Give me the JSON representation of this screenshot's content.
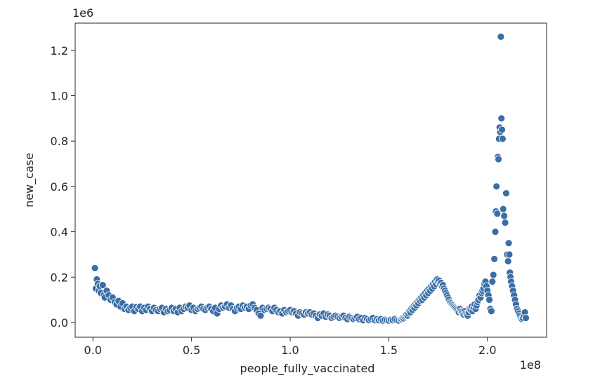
{
  "chart_data": {
    "type": "scatter",
    "title": "",
    "xlabel": "people_fully_vaccinated",
    "ylabel": "new_case",
    "x_offset_label": "1e8",
    "y_offset_label": "1e6",
    "xlim": [
      -0.09,
      2.3
    ],
    "ylim": [
      -0.065,
      1.32
    ],
    "xticks": [
      0.0,
      0.5,
      1.0,
      1.5,
      2.0
    ],
    "xtick_labels": [
      "0.0",
      "0.5",
      "1.0",
      "1.5",
      "2.0"
    ],
    "yticks": [
      0.0,
      0.2,
      0.4,
      0.6,
      0.8,
      1.0,
      1.2
    ],
    "ytick_labels": [
      "0.0",
      "0.2",
      "0.4",
      "0.6",
      "0.8",
      "1.0",
      "1.2"
    ],
    "x_units": "1e8",
    "y_units": "1e6",
    "grid": false,
    "legend": "none",
    "marker_color": "#3b6ea5",
    "marker_edge_color": "#ffffff",
    "points": [
      [
        0.01,
        0.24
      ],
      [
        0.015,
        0.15
      ],
      [
        0.02,
        0.19
      ],
      [
        0.025,
        0.17
      ],
      [
        0.03,
        0.14
      ],
      [
        0.035,
        0.16
      ],
      [
        0.04,
        0.13
      ],
      [
        0.05,
        0.165
      ],
      [
        0.055,
        0.12
      ],
      [
        0.06,
        0.11
      ],
      [
        0.07,
        0.14
      ],
      [
        0.08,
        0.12
      ],
      [
        0.09,
        0.1
      ],
      [
        0.1,
        0.11
      ],
      [
        0.11,
        0.09
      ],
      [
        0.12,
        0.08
      ],
      [
        0.13,
        0.095
      ],
      [
        0.14,
        0.07
      ],
      [
        0.15,
        0.085
      ],
      [
        0.16,
        0.06
      ],
      [
        0.17,
        0.07
      ],
      [
        0.18,
        0.055
      ],
      [
        0.19,
        0.065
      ],
      [
        0.2,
        0.07
      ],
      [
        0.21,
        0.05
      ],
      [
        0.22,
        0.068
      ],
      [
        0.23,
        0.06
      ],
      [
        0.24,
        0.07
      ],
      [
        0.25,
        0.05
      ],
      [
        0.26,
        0.065
      ],
      [
        0.27,
        0.055
      ],
      [
        0.28,
        0.07
      ],
      [
        0.29,
        0.06
      ],
      [
        0.3,
        0.05
      ],
      [
        0.31,
        0.065
      ],
      [
        0.32,
        0.055
      ],
      [
        0.33,
        0.05
      ],
      [
        0.34,
        0.06
      ],
      [
        0.35,
        0.065
      ],
      [
        0.36,
        0.045
      ],
      [
        0.37,
        0.06
      ],
      [
        0.38,
        0.05
      ],
      [
        0.39,
        0.055
      ],
      [
        0.4,
        0.065
      ],
      [
        0.41,
        0.05
      ],
      [
        0.42,
        0.06
      ],
      [
        0.43,
        0.045
      ],
      [
        0.44,
        0.065
      ],
      [
        0.45,
        0.05
      ],
      [
        0.46,
        0.06
      ],
      [
        0.47,
        0.07
      ],
      [
        0.48,
        0.065
      ],
      [
        0.49,
        0.075
      ],
      [
        0.5,
        0.055
      ],
      [
        0.51,
        0.065
      ],
      [
        0.52,
        0.05
      ],
      [
        0.53,
        0.06
      ],
      [
        0.54,
        0.065
      ],
      [
        0.55,
        0.07
      ],
      [
        0.56,
        0.06
      ],
      [
        0.57,
        0.055
      ],
      [
        0.58,
        0.065
      ],
      [
        0.59,
        0.07
      ],
      [
        0.6,
        0.06
      ],
      [
        0.61,
        0.05
      ],
      [
        0.62,
        0.065
      ],
      [
        0.63,
        0.04
      ],
      [
        0.64,
        0.06
      ],
      [
        0.65,
        0.075
      ],
      [
        0.66,
        0.065
      ],
      [
        0.67,
        0.07
      ],
      [
        0.68,
        0.08
      ],
      [
        0.69,
        0.065
      ],
      [
        0.7,
        0.075
      ],
      [
        0.71,
        0.06
      ],
      [
        0.72,
        0.05
      ],
      [
        0.73,
        0.065
      ],
      [
        0.74,
        0.07
      ],
      [
        0.75,
        0.06
      ],
      [
        0.76,
        0.075
      ],
      [
        0.77,
        0.065
      ],
      [
        0.78,
        0.07
      ],
      [
        0.79,
        0.06
      ],
      [
        0.8,
        0.075
      ],
      [
        0.81,
        0.08
      ],
      [
        0.82,
        0.065
      ],
      [
        0.83,
        0.055
      ],
      [
        0.84,
        0.04
      ],
      [
        0.85,
        0.03
      ],
      [
        0.86,
        0.065
      ],
      [
        0.87,
        0.055
      ],
      [
        0.88,
        0.06
      ],
      [
        0.89,
        0.065
      ],
      [
        0.9,
        0.06
      ],
      [
        0.91,
        0.05
      ],
      [
        0.92,
        0.065
      ],
      [
        0.93,
        0.055
      ],
      [
        0.94,
        0.045
      ],
      [
        0.95,
        0.05
      ],
      [
        0.96,
        0.04
      ],
      [
        0.97,
        0.055
      ],
      [
        0.98,
        0.045
      ],
      [
        0.99,
        0.05
      ],
      [
        1.0,
        0.055
      ],
      [
        1.01,
        0.045
      ],
      [
        1.02,
        0.05
      ],
      [
        1.03,
        0.04
      ],
      [
        1.04,
        0.03
      ],
      [
        1.05,
        0.045
      ],
      [
        1.06,
        0.04
      ],
      [
        1.07,
        0.035
      ],
      [
        1.08,
        0.045
      ],
      [
        1.09,
        0.04
      ],
      [
        1.1,
        0.045
      ],
      [
        1.11,
        0.035
      ],
      [
        1.12,
        0.04
      ],
      [
        1.13,
        0.03
      ],
      [
        1.14,
        0.02
      ],
      [
        1.15,
        0.035
      ],
      [
        1.16,
        0.03
      ],
      [
        1.17,
        0.04
      ],
      [
        1.18,
        0.025
      ],
      [
        1.19,
        0.035
      ],
      [
        1.2,
        0.03
      ],
      [
        1.21,
        0.02
      ],
      [
        1.22,
        0.025
      ],
      [
        1.23,
        0.03
      ],
      [
        1.24,
        0.025
      ],
      [
        1.25,
        0.02
      ],
      [
        1.26,
        0.025
      ],
      [
        1.27,
        0.03
      ],
      [
        1.28,
        0.02
      ],
      [
        1.29,
        0.015
      ],
      [
        1.3,
        0.025
      ],
      [
        1.31,
        0.02
      ],
      [
        1.32,
        0.015
      ],
      [
        1.33,
        0.02
      ],
      [
        1.34,
        0.025
      ],
      [
        1.35,
        0.015
      ],
      [
        1.36,
        0.02
      ],
      [
        1.37,
        0.01
      ],
      [
        1.38,
        0.02
      ],
      [
        1.39,
        0.015
      ],
      [
        1.4,
        0.01
      ],
      [
        1.41,
        0.015
      ],
      [
        1.42,
        0.02
      ],
      [
        1.43,
        0.01
      ],
      [
        1.44,
        0.015
      ],
      [
        1.45,
        0.01
      ],
      [
        1.46,
        0.015
      ],
      [
        1.47,
        0.008
      ],
      [
        1.48,
        0.012
      ],
      [
        1.49,
        0.01
      ],
      [
        1.5,
        0.008
      ],
      [
        1.51,
        0.012
      ],
      [
        1.52,
        0.01
      ],
      [
        1.53,
        0.015
      ],
      [
        1.54,
        0.01
      ],
      [
        1.55,
        0.008
      ],
      [
        1.56,
        0.012
      ],
      [
        1.565,
        0.015
      ],
      [
        1.57,
        0.02
      ],
      [
        1.575,
        0.018
      ],
      [
        1.58,
        0.025
      ],
      [
        1.585,
        0.03
      ],
      [
        1.59,
        0.035
      ],
      [
        1.595,
        0.03
      ],
      [
        1.6,
        0.04
      ],
      [
        1.605,
        0.05
      ],
      [
        1.61,
        0.045
      ],
      [
        1.615,
        0.06
      ],
      [
        1.62,
        0.055
      ],
      [
        1.625,
        0.07
      ],
      [
        1.63,
        0.065
      ],
      [
        1.635,
        0.08
      ],
      [
        1.64,
        0.075
      ],
      [
        1.645,
        0.09
      ],
      [
        1.65,
        0.085
      ],
      [
        1.655,
        0.1
      ],
      [
        1.66,
        0.095
      ],
      [
        1.665,
        0.11
      ],
      [
        1.67,
        0.1
      ],
      [
        1.675,
        0.12
      ],
      [
        1.68,
        0.11
      ],
      [
        1.685,
        0.13
      ],
      [
        1.69,
        0.12
      ],
      [
        1.695,
        0.14
      ],
      [
        1.7,
        0.13
      ],
      [
        1.705,
        0.15
      ],
      [
        1.71,
        0.14
      ],
      [
        1.715,
        0.16
      ],
      [
        1.72,
        0.15
      ],
      [
        1.725,
        0.17
      ],
      [
        1.73,
        0.16
      ],
      [
        1.735,
        0.18
      ],
      [
        1.74,
        0.17
      ],
      [
        1.745,
        0.19
      ],
      [
        1.75,
        0.18
      ],
      [
        1.755,
        0.185
      ],
      [
        1.76,
        0.17
      ],
      [
        1.765,
        0.175
      ],
      [
        1.77,
        0.16
      ],
      [
        1.775,
        0.165
      ],
      [
        1.78,
        0.15
      ],
      [
        1.785,
        0.14
      ],
      [
        1.79,
        0.13
      ],
      [
        1.795,
        0.12
      ],
      [
        1.8,
        0.11
      ],
      [
        1.805,
        0.1
      ],
      [
        1.81,
        0.09
      ],
      [
        1.815,
        0.085
      ],
      [
        1.82,
        0.08
      ],
      [
        1.825,
        0.075
      ],
      [
        1.83,
        0.07
      ],
      [
        1.835,
        0.065
      ],
      [
        1.84,
        0.06
      ],
      [
        1.845,
        0.055
      ],
      [
        1.85,
        0.05
      ],
      [
        1.855,
        0.045
      ],
      [
        1.86,
        0.06
      ],
      [
        1.865,
        0.05
      ],
      [
        1.87,
        0.045
      ],
      [
        1.875,
        0.04
      ],
      [
        1.88,
        0.035
      ],
      [
        1.885,
        0.05
      ],
      [
        1.89,
        0.04
      ],
      [
        1.895,
        0.035
      ],
      [
        1.9,
        0.03
      ],
      [
        1.905,
        0.045
      ],
      [
        1.91,
        0.06
      ],
      [
        1.915,
        0.055
      ],
      [
        1.92,
        0.07
      ],
      [
        1.925,
        0.05
      ],
      [
        1.93,
        0.065
      ],
      [
        1.935,
        0.08
      ],
      [
        1.94,
        0.06
      ],
      [
        1.945,
        0.075
      ],
      [
        1.95,
        0.09
      ],
      [
        1.955,
        0.1
      ],
      [
        1.96,
        0.12
      ],
      [
        1.965,
        0.11
      ],
      [
        1.97,
        0.13
      ],
      [
        1.975,
        0.14
      ],
      [
        1.98,
        0.15
      ],
      [
        1.985,
        0.17
      ],
      [
        1.99,
        0.18
      ],
      [
        1.995,
        0.16
      ],
      [
        2.0,
        0.14
      ],
      [
        2.005,
        0.12
      ],
      [
        2.01,
        0.1
      ],
      [
        2.015,
        0.06
      ],
      [
        2.02,
        0.05
      ],
      [
        2.025,
        0.18
      ],
      [
        2.03,
        0.21
      ],
      [
        2.035,
        0.28
      ],
      [
        2.04,
        0.4
      ],
      [
        2.043,
        0.49
      ],
      [
        2.046,
        0.6
      ],
      [
        2.05,
        0.48
      ],
      [
        2.053,
        0.73
      ],
      [
        2.056,
        0.72
      ],
      [
        2.059,
        0.81
      ],
      [
        2.062,
        0.86
      ],
      [
        2.065,
        0.84
      ],
      [
        2.068,
        1.26
      ],
      [
        2.071,
        0.9
      ],
      [
        2.074,
        0.85
      ],
      [
        2.077,
        0.81
      ],
      [
        2.08,
        0.5
      ],
      [
        2.085,
        0.47
      ],
      [
        2.09,
        0.44
      ],
      [
        2.095,
        0.57
      ],
      [
        2.1,
        0.3
      ],
      [
        2.105,
        0.27
      ],
      [
        2.108,
        0.35
      ],
      [
        2.111,
        0.3
      ],
      [
        2.114,
        0.22
      ],
      [
        2.117,
        0.2
      ],
      [
        2.12,
        0.18
      ],
      [
        2.125,
        0.16
      ],
      [
        2.13,
        0.14
      ],
      [
        2.135,
        0.12
      ],
      [
        2.14,
        0.1
      ],
      [
        2.145,
        0.08
      ],
      [
        2.15,
        0.06
      ],
      [
        2.155,
        0.05
      ],
      [
        2.16,
        0.04
      ],
      [
        2.165,
        0.03
      ],
      [
        2.17,
        0.02
      ],
      [
        2.175,
        0.015
      ],
      [
        2.18,
        0.02
      ],
      [
        2.185,
        0.03
      ],
      [
        2.19,
        0.045
      ],
      [
        2.195,
        0.02
      ]
    ]
  }
}
